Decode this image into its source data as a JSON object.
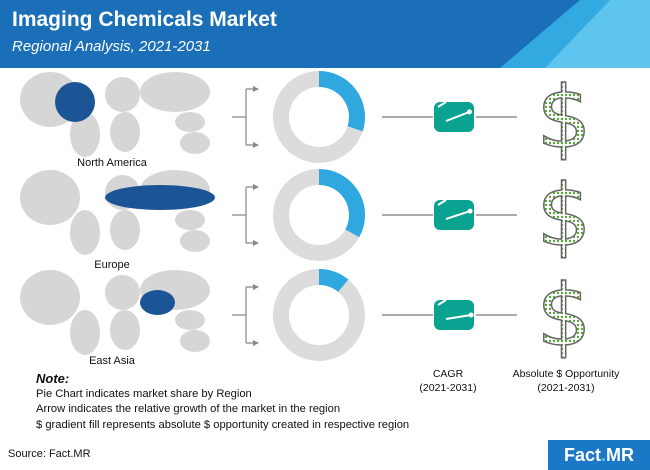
{
  "header": {
    "title": "Imaging Chemicals Market",
    "subtitle": "Regional Analysis, 2021-2031",
    "colors": {
      "primary": "#1b6fb8",
      "accent": "#35b0e6"
    }
  },
  "chart_data": {
    "type": "pie",
    "colors": {
      "share": "#2fa8e0",
      "rest": "#dcdcdc",
      "cagr_box": "#0aa392"
    },
    "series": [
      {
        "name": "North America",
        "share_percent": 30
      },
      {
        "name": "Europe",
        "share_percent": 33
      },
      {
        "name": "East Asia",
        "share_percent": 11
      }
    ]
  },
  "columns": {
    "cagr_label": "CAGR",
    "cagr_period": "(2021-2031)",
    "opportunity_label": "Absolute $ Opportunity",
    "opportunity_period": "(2021-2031)"
  },
  "note": {
    "title": "Note:",
    "line1": "Pie Chart indicates market share by Region",
    "line2": "Arrow indicates the relative growth of the market in the region",
    "line3": "$ gradient fill represents absolute $ opportunity created in respective region"
  },
  "footer": {
    "source": "Source: Fact.MR",
    "logo_main": "Fact",
    "logo_dot": ".",
    "logo_suffix": "MR"
  }
}
